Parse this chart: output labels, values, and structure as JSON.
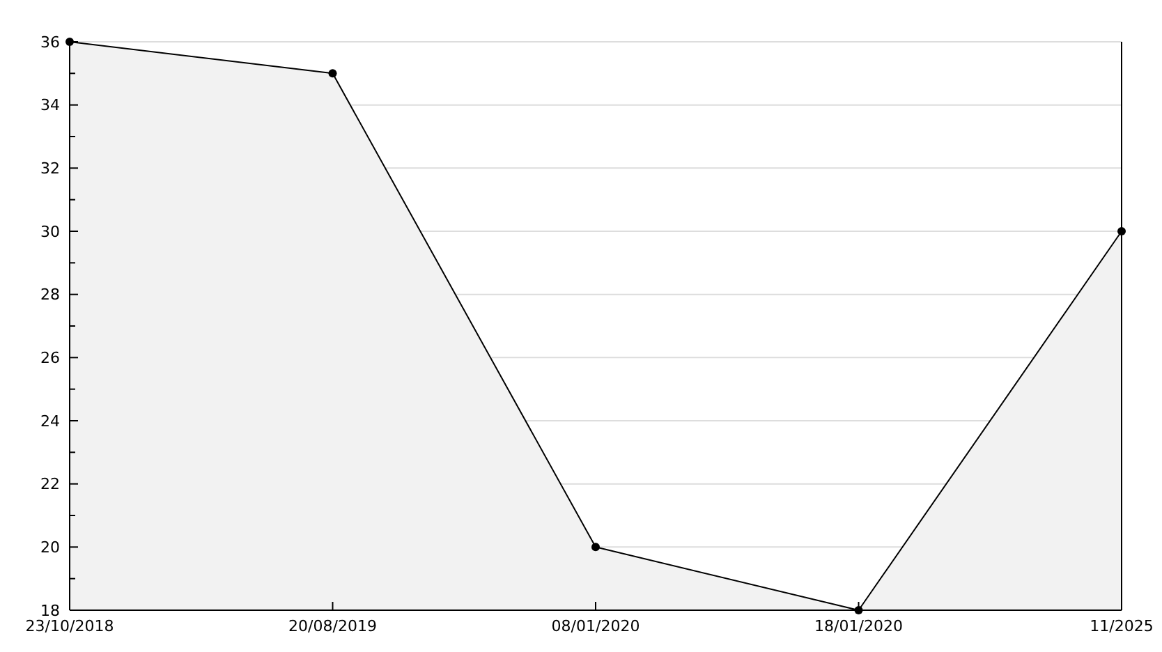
{
  "chart_data": {
    "type": "area",
    "categories": [
      "23/10/2018",
      "20/08/2019",
      "08/01/2020",
      "18/01/2020",
      "11/2025"
    ],
    "series": [
      {
        "color": "#000000",
        "values": [
          36,
          35,
          20,
          18,
          30
        ]
      }
    ],
    "ylim": [
      18,
      36
    ],
    "yticks": [
      18,
      {
        "value": 19,
        "label": null
      },
      20,
      {
        "value": 21,
        "label": null
      },
      22,
      {
        "value": 23,
        "label": null
      },
      24,
      {
        "value": 25,
        "label": null
      },
      26,
      {
        "value": 27,
        "label": null
      },
      28,
      {
        "value": 29,
        "label": null
      },
      30,
      {
        "value": 31,
        "label": null
      },
      32,
      {
        "value": 33,
        "label": null
      },
      34,
      {
        "value": 35,
        "label": null
      },
      36
    ],
    "grid": "y",
    "marker": "circle",
    "line_style": "solid"
  }
}
